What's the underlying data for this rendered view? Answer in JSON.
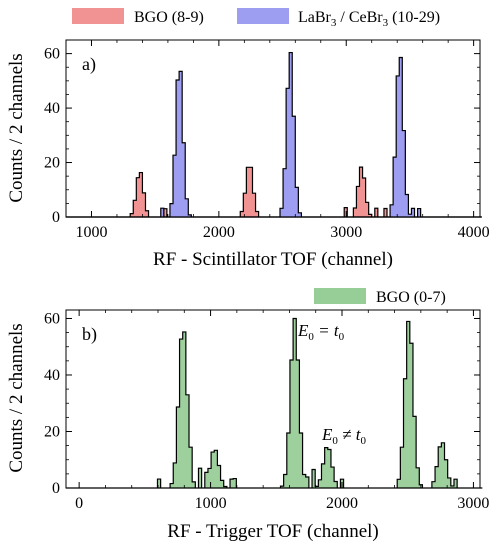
{
  "chart_data": [
    {
      "type": "histogram",
      "panel_label": "a)",
      "xlabel": "RF - Scintillator TOF (channel)",
      "ylabel": "Counts / 2 channels",
      "xlim": [
        800,
        4050
      ],
      "ylim": [
        0,
        65
      ],
      "xticks": [
        1000,
        2000,
        3000,
        4000
      ],
      "yticks": [
        0,
        20,
        40,
        60
      ],
      "grid": false,
      "legend_position": "top, outside plot",
      "series": [
        {
          "name": "BGO (8-9)",
          "color": "#f08080",
          "peaks": [
            {
              "center": 1380,
              "height": 17
            },
            {
              "center": 2240,
              "height": 20
            },
            {
              "center": 3120,
              "height": 18.5
            }
          ]
        },
        {
          "name": "LaBr3 / CeBr3 (10-29)",
          "color": "#8c8cf0",
          "peaks": [
            {
              "center": 1690,
              "height": 57
            },
            {
              "center": 2560,
              "height": 61
            },
            {
              "center": 3420,
              "height": 61
            }
          ]
        }
      ]
    },
    {
      "type": "histogram",
      "panel_label": "b)",
      "xlabel": "RF - Trigger TOF (channel)",
      "ylabel": "Counts / 2 channels",
      "xlim": [
        -100,
        3050
      ],
      "ylim": [
        0,
        63
      ],
      "xticks": [
        0,
        1000,
        2000,
        3000
      ],
      "yticks": [
        0,
        20,
        40,
        60
      ],
      "grid": false,
      "legend_position": "top-right, outside plot",
      "annotations": [
        {
          "text_main": "E",
          "text_sub": "0",
          "text_rest": " = t",
          "text_sub2": "0",
          "x": 1700,
          "y": 55
        },
        {
          "text_main": "E",
          "text_sub": "0",
          "text_rest": " ≠ t",
          "text_sub2": "0",
          "x": 1950,
          "y": 17
        }
      ],
      "series": [
        {
          "name": "BGO (0-7)",
          "color": "#8cc88c",
          "peaks": [
            {
              "center": 790,
              "height": 58
            },
            {
              "center": 1030,
              "height": 14
            },
            {
              "center": 1640,
              "height": 60
            },
            {
              "center": 1890,
              "height": 15
            },
            {
              "center": 2510,
              "height": 60
            },
            {
              "center": 2760,
              "height": 16.5
            }
          ]
        }
      ]
    }
  ],
  "legend_a": [
    {
      "label": "BGO (8-9)",
      "color": "#f08080"
    },
    {
      "label_main": "LaBr",
      "label_sub1": "3",
      "label_mid": " / CeBr",
      "label_sub2": "3",
      "label_rest": " (10-29)",
      "color": "#8c8cf0"
    }
  ],
  "legend_b": [
    {
      "label": "BGO (0-7)",
      "color": "#8cc88c"
    }
  ]
}
